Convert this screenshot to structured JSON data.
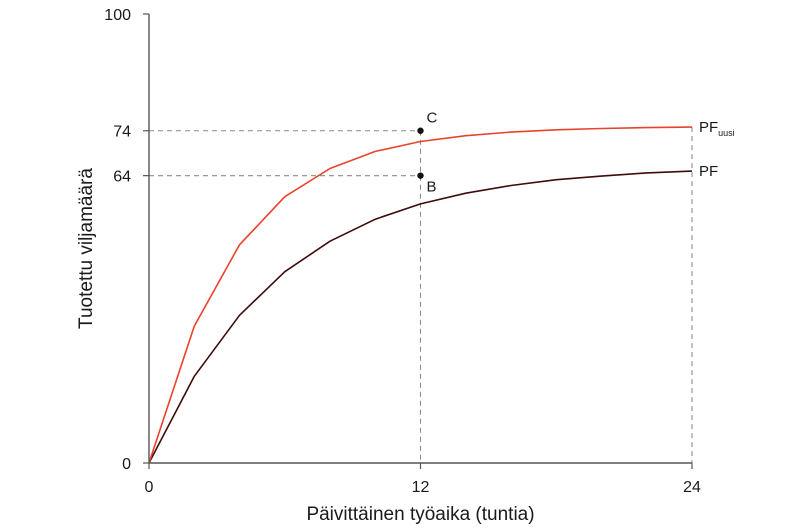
{
  "chart_data": {
    "type": "line",
    "title": "",
    "xlabel": "Päivittäinen työaika (tuntia)",
    "ylabel": "Tuotettu viljamäärä",
    "xlim": [
      0,
      24
    ],
    "ylim": [
      0,
      100
    ],
    "x_ticks": [
      "0",
      "12",
      "24"
    ],
    "y_ticks": [
      "0",
      "64",
      "74",
      "100"
    ],
    "grid": false,
    "series": [
      {
        "name": "PF",
        "label_main": "PF",
        "label_sub": "",
        "color": "#3d0c0c",
        "x": [
          0,
          2,
          4,
          6,
          8,
          10,
          12,
          14,
          16,
          18,
          20,
          22,
          24
        ],
        "y": [
          0,
          19.3,
          32.9,
          42.6,
          49.4,
          54.3,
          57.7,
          60.1,
          61.8,
          63.1,
          63.9,
          64.6,
          65.0
        ]
      },
      {
        "name": "PFuusi",
        "label_main": "PF",
        "label_sub": "uusi",
        "color": "#e8432e",
        "x": [
          0,
          2,
          4,
          6,
          8,
          10,
          12,
          14,
          16,
          18,
          20,
          22,
          24
        ],
        "y": [
          0,
          30.5,
          48.6,
          59.3,
          65.6,
          69.4,
          71.6,
          72.9,
          73.7,
          74.2,
          74.5,
          74.7,
          74.8
        ]
      }
    ],
    "points": [
      {
        "label": "C",
        "x": 12,
        "y": 74
      },
      {
        "label": "B",
        "x": 12,
        "y": 64
      }
    ],
    "reference_lines": [
      {
        "axis": "x",
        "value": 12
      },
      {
        "axis": "x",
        "value": 24
      },
      {
        "axis": "y",
        "value": 74
      },
      {
        "axis": "y",
        "value": 64
      }
    ],
    "colors": {
      "axis": "#555555",
      "dashed": "#8c8c8c",
      "point": "#111111"
    }
  }
}
